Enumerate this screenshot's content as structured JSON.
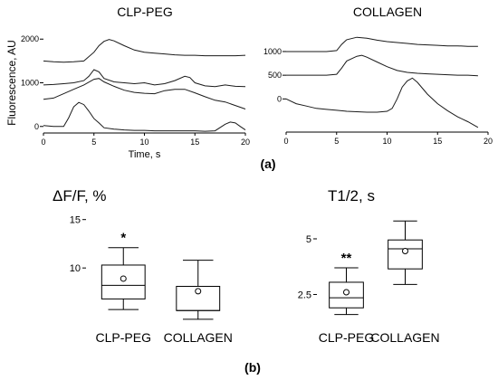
{
  "figure_a_label": "(a)",
  "figure_b_label": "(b)",
  "chart_data": [
    {
      "type": "line",
      "title": "CLP-PEG",
      "xlabel": "Time, s",
      "ylabel": "Fluorescence, AU",
      "xlim": [
        0,
        20
      ],
      "ylim": [
        -150,
        2150
      ],
      "xticks": [
        0,
        5,
        10,
        15,
        20
      ],
      "yticks": [
        0,
        1000,
        2000
      ],
      "ytick_labels": [
        "0",
        "1000",
        "2000"
      ],
      "grid": false,
      "series": [
        {
          "x": [
            0,
            1,
            2,
            3,
            4,
            5,
            5.5,
            6,
            6.5,
            7,
            8,
            9,
            10,
            11,
            12,
            13,
            14,
            15,
            16,
            17,
            18,
            19,
            20
          ],
          "y": [
            1500,
            1480,
            1470,
            1480,
            1500,
            1700,
            1850,
            1950,
            1990,
            1960,
            1850,
            1750,
            1700,
            1680,
            1660,
            1640,
            1630,
            1630,
            1620,
            1620,
            1620,
            1620,
            1630
          ]
        },
        {
          "x": [
            0,
            1,
            2,
            3,
            4,
            4.5,
            5,
            5.5,
            6,
            7,
            8,
            9,
            10,
            11,
            12,
            13,
            14,
            14.5,
            15,
            16,
            17,
            18,
            19,
            20
          ],
          "y": [
            950,
            960,
            980,
            1000,
            1050,
            1150,
            1300,
            1250,
            1100,
            1020,
            1000,
            980,
            1000,
            950,
            980,
            1050,
            1150,
            1120,
            1000,
            930,
            910,
            950,
            920,
            910
          ]
        },
        {
          "x": [
            0,
            1,
            2,
            3,
            4,
            5,
            5.5,
            6,
            7,
            8,
            9,
            10,
            11,
            12,
            13,
            14,
            15,
            16,
            17,
            18,
            19,
            20
          ],
          "y": [
            620,
            650,
            750,
            850,
            950,
            1080,
            1100,
            1020,
            920,
            830,
            780,
            760,
            750,
            820,
            850,
            850,
            770,
            680,
            600,
            560,
            480,
            400
          ]
        },
        {
          "x": [
            0,
            1,
            2,
            2.5,
            3,
            3.5,
            4,
            4.5,
            5,
            5.5,
            6,
            7,
            8,
            9,
            10,
            11,
            12,
            13,
            14,
            15,
            16,
            17,
            18,
            18.5,
            19,
            19.5,
            20
          ],
          "y": [
            20,
            0,
            0,
            200,
            450,
            550,
            500,
            350,
            180,
            80,
            -30,
            -60,
            -80,
            -90,
            -90,
            -100,
            -100,
            -100,
            -100,
            -100,
            -110,
            -100,
            50,
            100,
            80,
            0,
            -80
          ]
        }
      ]
    },
    {
      "type": "line",
      "title": "COLLAGEN",
      "xlabel": "",
      "ylabel": "",
      "xlim": [
        0,
        20
      ],
      "ylim": [
        -700,
        1400
      ],
      "xticks": [
        0,
        5,
        10,
        15,
        20
      ],
      "yticks": [
        0,
        500,
        1000
      ],
      "ytick_labels": [
        "0",
        "500",
        "1000"
      ],
      "grid": false,
      "series": [
        {
          "x": [
            0,
            1,
            2,
            3,
            4,
            5,
            5.5,
            6,
            7,
            8,
            9,
            10,
            11,
            12,
            13,
            14,
            15,
            16,
            17,
            18,
            19
          ],
          "y": [
            1000,
            1000,
            1000,
            1000,
            1000,
            1020,
            1150,
            1250,
            1300,
            1280,
            1240,
            1210,
            1190,
            1170,
            1150,
            1140,
            1130,
            1120,
            1120,
            1110,
            1110
          ]
        },
        {
          "x": [
            0,
            1,
            2,
            3,
            4,
            5,
            5.5,
            6,
            7,
            7.5,
            8,
            9,
            10,
            11,
            12,
            13,
            14,
            15,
            16,
            17,
            18,
            19
          ],
          "y": [
            500,
            500,
            500,
            500,
            500,
            520,
            650,
            800,
            900,
            920,
            880,
            780,
            680,
            600,
            560,
            540,
            530,
            520,
            510,
            500,
            500,
            490
          ]
        },
        {
          "x": [
            0,
            1,
            2,
            3,
            4,
            5,
            6,
            7,
            8,
            9,
            10,
            10.5,
            11,
            11.5,
            12,
            12.5,
            13,
            14,
            15,
            16,
            17,
            18,
            19
          ],
          "y": [
            0,
            -100,
            -150,
            -200,
            -220,
            -240,
            -260,
            -270,
            -280,
            -280,
            -260,
            -200,
            0,
            250,
            380,
            440,
            350,
            100,
            -100,
            -250,
            -380,
            -480,
            -600
          ]
        }
      ]
    },
    {
      "type": "box",
      "ylabel": "ΔF/F, %",
      "ylim": [
        4.5,
        16
      ],
      "yticks": [
        10,
        15
      ],
      "ytick_labels": [
        "10",
        "15"
      ],
      "categories": [
        "CLP-PEG",
        "COLLAGEN"
      ],
      "boxes": [
        {
          "whisker_low": 5.7,
          "q1": 6.8,
          "median": 8.2,
          "q3": 10.3,
          "whisker_high": 12.1,
          "mean": 8.9,
          "annotation": "*"
        },
        {
          "whisker_low": 4.7,
          "q1": 5.6,
          "median": 5.6,
          "q3": 8.1,
          "whisker_high": 10.8,
          "mean": 7.6,
          "annotation": ""
        }
      ]
    },
    {
      "type": "box",
      "ylabel": "T1/2, s",
      "ylim": [
        1.3,
        6.3
      ],
      "yticks": [
        2.5,
        5
      ],
      "ytick_labels": [
        "2.5",
        "5"
      ],
      "categories": [
        "CLP-PEG",
        "COLLAGEN"
      ],
      "boxes": [
        {
          "whisker_low": 1.6,
          "q1": 1.9,
          "median": 2.35,
          "q3": 3.05,
          "whisker_high": 3.7,
          "mean": 2.6,
          "annotation": "**"
        },
        {
          "whisker_low": 2.95,
          "q1": 3.65,
          "median": 4.55,
          "q3": 4.95,
          "whisker_high": 5.8,
          "mean": 4.45,
          "annotation": ""
        }
      ]
    }
  ]
}
